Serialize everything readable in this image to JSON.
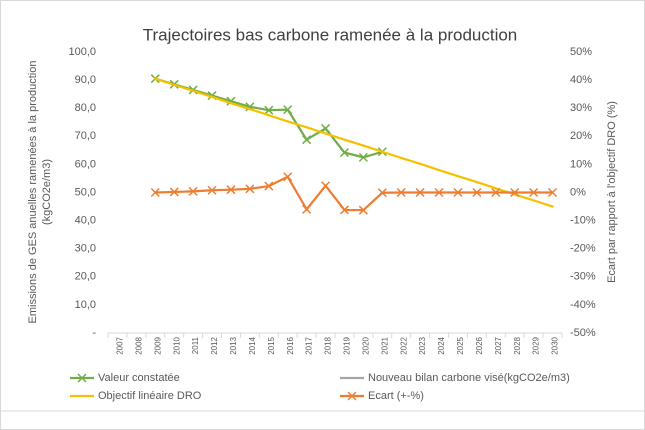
{
  "chart_data": {
    "type": "line",
    "title": "Trajectoires bas carbone ramenée à la production",
    "ylabel": [
      "Emissions de GES anuelles ramenées à la production",
      "(kgCO2e/m3)"
    ],
    "y2label": "Ecart par rapport à l'objectif DRO (%)",
    "categories": [
      "2007",
      "2008",
      "2009",
      "2010",
      "2011",
      "2012",
      "2013",
      "2014",
      "2015",
      "2016",
      "2017",
      "2018",
      "2019",
      "2020",
      "2021",
      "2022",
      "2023",
      "2024",
      "2025",
      "2026",
      "2027",
      "2028",
      "2029",
      "2030"
    ],
    "ylim": [
      0,
      100
    ],
    "yticks": [
      {
        "value": 0,
        "label": "-"
      },
      {
        "value": 10,
        "label": "10,0"
      },
      {
        "value": 20,
        "label": "20,0"
      },
      {
        "value": 30,
        "label": "30,0"
      },
      {
        "value": 40,
        "label": "40,0"
      },
      {
        "value": 50,
        "label": "50,0"
      },
      {
        "value": 60,
        "label": "60,0"
      },
      {
        "value": 70,
        "label": "70,0"
      },
      {
        "value": 80,
        "label": "80,0"
      },
      {
        "value": 90,
        "label": "90,0"
      },
      {
        "value": 100,
        "label": "100,0"
      }
    ],
    "y2lim": [
      -50,
      50
    ],
    "y2ticks": [
      {
        "value": -50,
        "label": "-50%"
      },
      {
        "value": -40,
        "label": "-40%"
      },
      {
        "value": -30,
        "label": "-30%"
      },
      {
        "value": -20,
        "label": "-20%"
      },
      {
        "value": -10,
        "label": "-10%"
      },
      {
        "value": 0,
        "label": "0%"
      },
      {
        "value": 10,
        "label": "10%"
      },
      {
        "value": 20,
        "label": "20%"
      },
      {
        "value": 30,
        "label": "30%"
      },
      {
        "value": 40,
        "label": "40%"
      },
      {
        "value": 50,
        "label": "50%"
      }
    ],
    "legend": "bottom",
    "series": [
      {
        "name": "Valeur constatée",
        "color": "#70ad47",
        "marker": "x",
        "values": [
          null,
          null,
          90.5,
          88.5,
          86.5,
          84.5,
          82.5,
          80.5,
          79.3,
          79.5,
          68.8,
          72.8,
          64.2,
          62.5,
          64.5,
          null,
          null,
          null,
          null,
          null,
          null,
          null,
          null,
          null
        ]
      },
      {
        "name": "Nouveau bilan carbone visé(kgCO2e/m3)",
        "color": "#a5a5a5",
        "marker": "none",
        "values": [
          null,
          null,
          null,
          null,
          null,
          null,
          null,
          null,
          null,
          null,
          null,
          null,
          null,
          null,
          null,
          null,
          null,
          null,
          null,
          null,
          null,
          null,
          null,
          null
        ]
      },
      {
        "name": "Objectif linéaire DRO",
        "color": "#f5c000",
        "marker": "none",
        "values": [
          null,
          null,
          90.5,
          88.3,
          86.2,
          84.0,
          81.8,
          79.7,
          77.5,
          75.3,
          73.2,
          71.0,
          68.8,
          66.7,
          64.5,
          62.3,
          60.2,
          58.0,
          55.8,
          53.7,
          51.5,
          49.3,
          47.2,
          45.0
        ]
      },
      {
        "name": "Ecart (+-%)",
        "color": "#ed7d31",
        "marker": "x",
        "axis": "y2",
        "values": [
          null,
          null,
          0,
          0.2,
          0.4,
          0.8,
          1.0,
          1.3,
          2.3,
          5.6,
          -6.0,
          2.4,
          -6.2,
          -6.3,
          -0.1,
          0,
          0,
          0,
          0,
          0,
          0,
          0,
          0,
          0
        ]
      }
    ]
  }
}
